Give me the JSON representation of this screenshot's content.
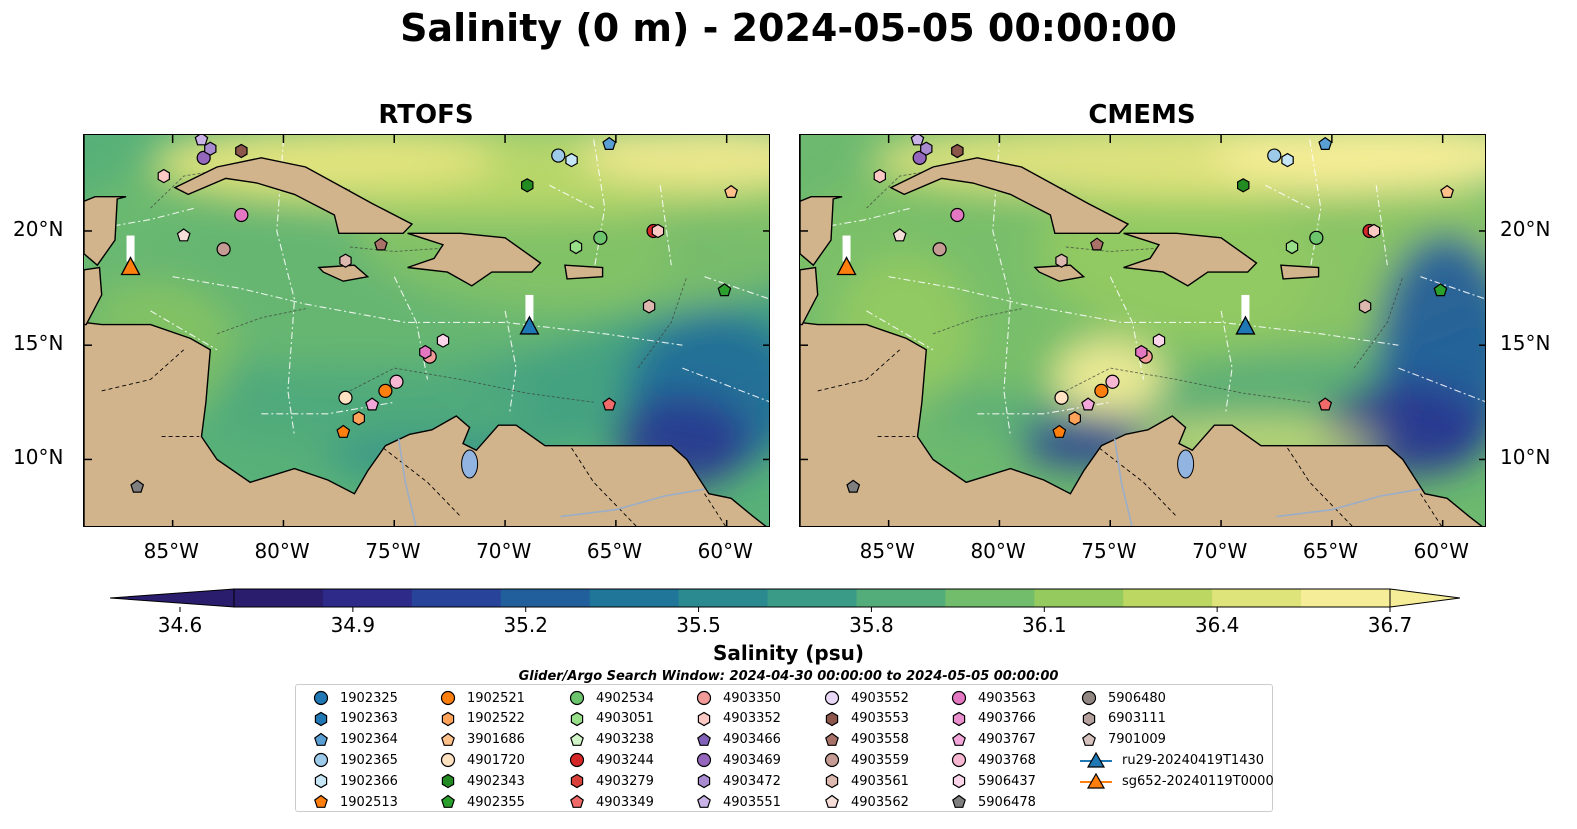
{
  "title": "Salinity (0 m) - 2024-05-05 00:00:00",
  "panels": [
    {
      "title": "RTOFS"
    },
    {
      "title": "CMEMS"
    }
  ],
  "lon_labels": [
    "85°W",
    "80°W",
    "75°W",
    "70°W",
    "65°W",
    "60°W"
  ],
  "lon_values": [
    -85,
    -80,
    -75,
    -70,
    -65,
    -60
  ],
  "lat_labels": [
    "20°N",
    "15°N",
    "10°N"
  ],
  "lat_values": [
    20,
    15,
    10
  ],
  "extent": {
    "lon_min": -89,
    "lon_max": -58,
    "lat_min": 7,
    "lat_max": 24.2
  },
  "colorbar": {
    "label": "Salinity (psu)",
    "ticks": [
      "34.6",
      "34.9",
      "35.2",
      "35.5",
      "35.8",
      "36.1",
      "36.4",
      "36.7"
    ],
    "min": 34.6,
    "max": 36.7,
    "colors": [
      "#2a1d6e",
      "#2e2a8a",
      "#28449a",
      "#205f9c",
      "#1f7699",
      "#2a8a90",
      "#3a9c86",
      "#52ad7a",
      "#72bd6b",
      "#95ca5f",
      "#bcd762",
      "#dee37a",
      "#f6ed98"
    ]
  },
  "search_window": "Glider/Argo Search Window: 2024-04-30 00:00:00 to 2024-05-05 00:00:00",
  "legend": [
    {
      "label": "1902325",
      "color": "#1f77b4",
      "shape": "circle"
    },
    {
      "label": "1902363",
      "color": "#1f77b4",
      "shape": "hexagon"
    },
    {
      "label": "1902364",
      "color": "#5a9fd4",
      "shape": "pentagon"
    },
    {
      "label": "1902365",
      "color": "#9ecae9",
      "shape": "circle"
    },
    {
      "label": "1902366",
      "color": "#c6e6f6",
      "shape": "hexagon"
    },
    {
      "label": "1902513",
      "color": "#ff7f0e",
      "shape": "pentagon"
    },
    {
      "label": "1902521",
      "color": "#ff7f0e",
      "shape": "circle"
    },
    {
      "label": "1902522",
      "color": "#ffa35a",
      "shape": "hexagon"
    },
    {
      "label": "3901686",
      "color": "#ffc08a",
      "shape": "pentagon"
    },
    {
      "label": "4901720",
      "color": "#ffe2c2",
      "shape": "circle"
    },
    {
      "label": "4902343",
      "color": "#228b22",
      "shape": "hexagon"
    },
    {
      "label": "4902355",
      "color": "#2ca02c",
      "shape": "pentagon"
    },
    {
      "label": "4902534",
      "color": "#6cc46c",
      "shape": "circle"
    },
    {
      "label": "4903051",
      "color": "#98df8a",
      "shape": "hexagon"
    },
    {
      "label": "4903238",
      "color": "#d2f5c8",
      "shape": "pentagon"
    },
    {
      "label": "4903244",
      "color": "#d62728",
      "shape": "circle"
    },
    {
      "label": "4903279",
      "color": "#d9413a",
      "shape": "hexagon"
    },
    {
      "label": "4903349",
      "color": "#f06a6a",
      "shape": "pentagon"
    },
    {
      "label": "4903350",
      "color": "#f29a98",
      "shape": "circle"
    },
    {
      "label": "4903352",
      "color": "#fcc8c4",
      "shape": "hexagon"
    },
    {
      "label": "4903466",
      "color": "#8060b8",
      "shape": "pentagon"
    },
    {
      "label": "4903469",
      "color": "#9467bd",
      "shape": "circle"
    },
    {
      "label": "4903472",
      "color": "#a88ad0",
      "shape": "hexagon"
    },
    {
      "label": "4903551",
      "color": "#c8b2e6",
      "shape": "pentagon"
    },
    {
      "label": "4903552",
      "color": "#e8d8f6",
      "shape": "circle"
    },
    {
      "label": "4903553",
      "color": "#8c564b",
      "shape": "hexagon"
    },
    {
      "label": "4903558",
      "color": "#a87268",
      "shape": "pentagon"
    },
    {
      "label": "4903559",
      "color": "#c49c94",
      "shape": "circle"
    },
    {
      "label": "4903561",
      "color": "#ddb8ae",
      "shape": "hexagon"
    },
    {
      "label": "4903562",
      "color": "#f6ded8",
      "shape": "pentagon"
    },
    {
      "label": "4903563",
      "color": "#e377c2",
      "shape": "circle"
    },
    {
      "label": "4903766",
      "color": "#ea8fce",
      "shape": "hexagon"
    },
    {
      "label": "4903767",
      "color": "#f3a6da",
      "shape": "pentagon"
    },
    {
      "label": "4903768",
      "color": "#f7b6d2",
      "shape": "circle"
    },
    {
      "label": "5906437",
      "color": "#fbd6ea",
      "shape": "hexagon"
    },
    {
      "label": "5906478",
      "color": "#7f7f7f",
      "shape": "pentagon"
    },
    {
      "label": "5906480",
      "color": "#938783",
      "shape": "circle"
    },
    {
      "label": "6903111",
      "color": "#b4a09c",
      "shape": "hexagon"
    },
    {
      "label": "7901009",
      "color": "#d6c2bd",
      "shape": "pentagon"
    },
    {
      "label": "ru29-20240419T1430",
      "color": "#1f77b4",
      "shape": "triangle-line"
    },
    {
      "label": "sg652-20240119T0000",
      "color": "#ff7f0e",
      "shape": "triangle-line"
    }
  ],
  "floats": [
    {
      "lon": -83.7,
      "lat": 24.0,
      "color": "#c8b2e6",
      "shape": "pentagon"
    },
    {
      "lon": -83.6,
      "lat": 23.2,
      "color": "#9467bd",
      "shape": "circle"
    },
    {
      "lon": -83.3,
      "lat": 23.6,
      "color": "#a88ad0",
      "shape": "hexagon"
    },
    {
      "lon": -81.9,
      "lat": 23.5,
      "color": "#8c564b",
      "shape": "hexagon"
    },
    {
      "lon": -85.4,
      "lat": 22.4,
      "color": "#fcc8c4",
      "shape": "hexagon"
    },
    {
      "lon": -81.9,
      "lat": 20.7,
      "color": "#e377c2",
      "shape": "circle"
    },
    {
      "lon": -84.5,
      "lat": 19.8,
      "color": "#f6ded8",
      "shape": "pentagon"
    },
    {
      "lon": -82.7,
      "lat": 19.2,
      "color": "#c49c94",
      "shape": "circle"
    },
    {
      "lon": -77.2,
      "lat": 18.7,
      "color": "#ddb8ae",
      "shape": "hexagon"
    },
    {
      "lon": -75.6,
      "lat": 19.4,
      "color": "#a87268",
      "shape": "pentagon"
    },
    {
      "lon": -67.6,
      "lat": 23.3,
      "color": "#9ecae9",
      "shape": "circle"
    },
    {
      "lon": -67.0,
      "lat": 23.1,
      "color": "#c6e6f6",
      "shape": "hexagon"
    },
    {
      "lon": -65.3,
      "lat": 23.8,
      "color": "#5a9fd4",
      "shape": "pentagon"
    },
    {
      "lon": -69.0,
      "lat": 22.0,
      "color": "#228b22",
      "shape": "hexagon"
    },
    {
      "lon": -66.8,
      "lat": 19.3,
      "color": "#98df8a",
      "shape": "hexagon"
    },
    {
      "lon": -65.7,
      "lat": 19.7,
      "color": "#6cc46c",
      "shape": "circle"
    },
    {
      "lon": -63.3,
      "lat": 20.0,
      "color": "#d62728",
      "shape": "circle"
    },
    {
      "lon": -63.1,
      "lat": 20.0,
      "color": "#fcc8c4",
      "shape": "hexagon"
    },
    {
      "lon": -59.8,
      "lat": 21.7,
      "color": "#ffc08a",
      "shape": "pentagon"
    },
    {
      "lon": -60.1,
      "lat": 17.4,
      "color": "#2ca02c",
      "shape": "pentagon"
    },
    {
      "lon": -63.5,
      "lat": 16.7,
      "color": "#ddb8ae",
      "shape": "hexagon"
    },
    {
      "lon": -73.4,
      "lat": 14.5,
      "color": "#f29a98",
      "shape": "circle"
    },
    {
      "lon": -73.6,
      "lat": 14.7,
      "color": "#e377c2",
      "shape": "hexagon"
    },
    {
      "lon": -72.8,
      "lat": 15.2,
      "color": "#fbd6ea",
      "shape": "hexagon"
    },
    {
      "lon": -74.9,
      "lat": 13.4,
      "color": "#f7b6d2",
      "shape": "circle"
    },
    {
      "lon": -75.4,
      "lat": 13.0,
      "color": "#ff7f0e",
      "shape": "circle"
    },
    {
      "lon": -77.2,
      "lat": 12.7,
      "color": "#ffe2c2",
      "shape": "circle"
    },
    {
      "lon": -76.0,
      "lat": 12.4,
      "color": "#f3a6da",
      "shape": "pentagon"
    },
    {
      "lon": -76.6,
      "lat": 11.8,
      "color": "#ffa35a",
      "shape": "hexagon"
    },
    {
      "lon": -77.3,
      "lat": 11.2,
      "color": "#ff7f0e",
      "shape": "pentagon"
    },
    {
      "lon": -65.3,
      "lat": 12.4,
      "color": "#f06a6a",
      "shape": "pentagon"
    },
    {
      "lon": -86.6,
      "lat": 8.8,
      "color": "#7f7f7f",
      "shape": "pentagon"
    }
  ],
  "gliders": [
    {
      "lon": -86.9,
      "lat": 18.4,
      "color": "#ff7f0e"
    },
    {
      "lon": -68.9,
      "lat": 15.8,
      "color": "#1f77b4"
    }
  ]
}
